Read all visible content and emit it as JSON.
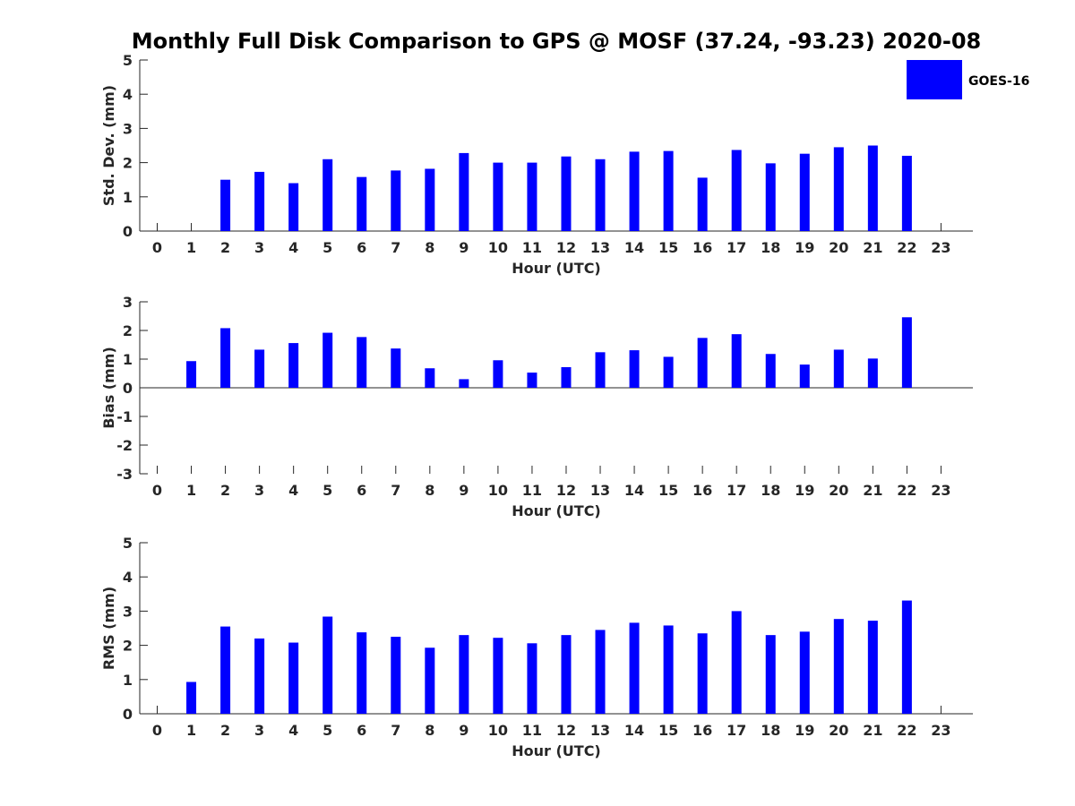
{
  "title": "Monthly Full Disk Comparison to GPS @ MOSF (37.24, -93.23) 2020-08",
  "legend": {
    "label": "GOES-16",
    "color": "#0000ff",
    "position": "top-right"
  },
  "chart_data": [
    {
      "type": "bar",
      "name": "std-dev",
      "ylabel": "Std. Dev. (mm)",
      "xlabel": "Hour (UTC)",
      "ylim": [
        0,
        5
      ],
      "yticks": [
        "0",
        "1",
        "2",
        "3",
        "4",
        "5"
      ],
      "categories": [
        "0",
        "1",
        "2",
        "3",
        "4",
        "5",
        "6",
        "7",
        "8",
        "9",
        "10",
        "11",
        "12",
        "13",
        "14",
        "15",
        "16",
        "17",
        "18",
        "19",
        "20",
        "21",
        "22",
        "23"
      ],
      "series": [
        {
          "name": "GOES-16",
          "values": [
            null,
            null,
            1.5,
            1.73,
            1.4,
            2.1,
            1.58,
            1.77,
            1.82,
            2.28,
            2.0,
            2.0,
            2.18,
            2.1,
            2.32,
            2.34,
            1.56,
            2.37,
            1.98,
            2.26,
            2.45,
            2.5,
            2.2,
            null
          ]
        }
      ]
    },
    {
      "type": "bar",
      "name": "bias",
      "ylabel": "Bias (mm)",
      "xlabel": "Hour (UTC)",
      "ylim": [
        -3,
        3
      ],
      "yticks": [
        "-3",
        "-2",
        "-1",
        "0",
        "1",
        "2",
        "3"
      ],
      "categories": [
        "0",
        "1",
        "2",
        "3",
        "4",
        "5",
        "6",
        "7",
        "8",
        "9",
        "10",
        "11",
        "12",
        "13",
        "14",
        "15",
        "16",
        "17",
        "18",
        "19",
        "20",
        "21",
        "22",
        "23"
      ],
      "series": [
        {
          "name": "GOES-16",
          "values": [
            null,
            0.93,
            2.08,
            1.33,
            1.56,
            1.92,
            1.77,
            1.37,
            0.68,
            0.3,
            0.96,
            0.53,
            0.72,
            1.24,
            1.31,
            1.08,
            1.74,
            1.87,
            1.18,
            0.81,
            1.33,
            1.02,
            2.46,
            null
          ]
        }
      ]
    },
    {
      "type": "bar",
      "name": "rms",
      "ylabel": "RMS (mm)",
      "xlabel": "Hour (UTC)",
      "ylim": [
        0,
        5
      ],
      "yticks": [
        "0",
        "1",
        "2",
        "3",
        "4",
        "5"
      ],
      "categories": [
        "0",
        "1",
        "2",
        "3",
        "4",
        "5",
        "6",
        "7",
        "8",
        "9",
        "10",
        "11",
        "12",
        "13",
        "14",
        "15",
        "16",
        "17",
        "18",
        "19",
        "20",
        "21",
        "22",
        "23"
      ],
      "series": [
        {
          "name": "GOES-16",
          "values": [
            null,
            0.93,
            2.55,
            2.2,
            2.08,
            2.84,
            2.38,
            2.25,
            1.93,
            2.3,
            2.22,
            2.06,
            2.3,
            2.45,
            2.66,
            2.58,
            2.35,
            3.0,
            2.3,
            2.4,
            2.77,
            2.72,
            3.31,
            null
          ]
        }
      ]
    }
  ]
}
